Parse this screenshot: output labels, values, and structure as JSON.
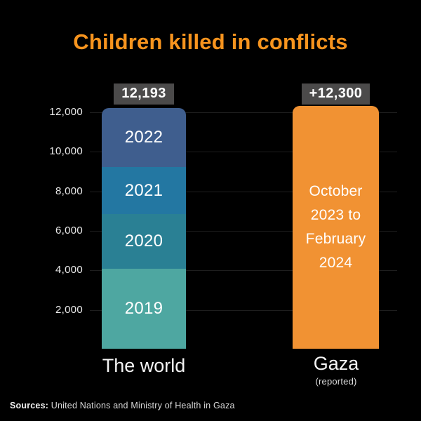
{
  "title": "Children killed in conflicts",
  "colors": {
    "background": "#000000",
    "title": "#f7941e",
    "badge_bg": "#4b4a4a",
    "badge_text": "#ffffff",
    "gridline": "#1e1e1e",
    "axis_text": "#eaeaea",
    "gaza_bar": "#f19233",
    "seg_2022": "#3f5e8e",
    "seg_2021": "#2377a2",
    "seg_2020": "#2a8094",
    "seg_2019": "#4ea7a1"
  },
  "y_axis": {
    "labels": [
      "2,000",
      "4,000",
      "6,000",
      "8,000",
      "10,000",
      "12,000"
    ]
  },
  "world_bar": {
    "total_label": "12,193",
    "x_label": "The world"
  },
  "gaza_bar": {
    "total_label": "+12,300",
    "period_label": "October 2023 to February 2024",
    "x_label": "Gaza",
    "x_sublabel": "(reported)"
  },
  "source": {
    "prefix": "Sources:",
    "text": "United Nations and  Ministry of Health in Gaza"
  },
  "chart_data": {
    "type": "bar",
    "subtype": "stacked-bar comparison",
    "title": "Children killed in conflicts",
    "xlabel": "",
    "ylabel": "",
    "ylim": [
      0,
      12600
    ],
    "y_ticks": [
      2000,
      4000,
      6000,
      8000,
      10000,
      12000
    ],
    "grid": true,
    "categories": [
      "The world",
      "Gaza (reported)"
    ],
    "bars": [
      {
        "category": "The world",
        "total": 12193,
        "total_label": "12,193",
        "stack_note": "segment values estimated from pixel heights; only year labels and the 12,193 total are printed on the chart",
        "stack": [
          {
            "name": "2019",
            "value": 4040,
            "color": "#4ea7a1"
          },
          {
            "name": "2020",
            "value": 2760,
            "color": "#2a8094"
          },
          {
            "name": "2021",
            "value": 2410,
            "color": "#2377a2"
          },
          {
            "name": "2022",
            "value": 2983,
            "color": "#3f5e8e"
          }
        ]
      },
      {
        "category": "Gaza (reported)",
        "total": 12300,
        "total_label": "+12,300",
        "annotation": "October 2023 to February 2024",
        "color": "#f19233"
      }
    ]
  }
}
